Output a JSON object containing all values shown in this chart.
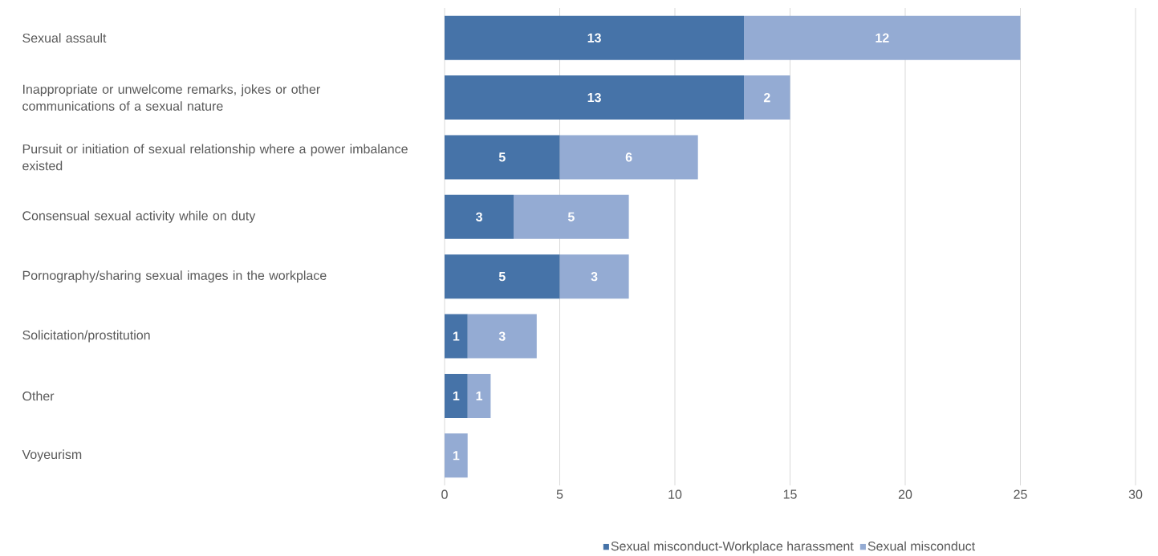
{
  "chart_data": {
    "type": "bar",
    "orientation": "horizontal",
    "stacked": true,
    "categories": [
      "Sexual assault",
      "Inappropriate or unwelcome remarks, jokes or other communications of a sexual nature",
      "Pursuit or initiation of sexual relationship where a power imbalance existed",
      "Consensual sexual activity while on duty",
      "Pornography/sharing sexual images in the workplace",
      "Solicitation/prostitution",
      "Other",
      "Voyeurism"
    ],
    "series": [
      {
        "name": "Sexual misconduct-Workplace harassment",
        "color": "#4673a8",
        "values": [
          13,
          13,
          5,
          3,
          5,
          1,
          1,
          null
        ]
      },
      {
        "name": "Sexual misconduct",
        "color": "#94abd3",
        "values": [
          12,
          2,
          6,
          5,
          3,
          3,
          1,
          1
        ]
      }
    ],
    "xlim": [
      0,
      30
    ],
    "xticks": [
      0,
      5,
      10,
      15,
      20,
      25,
      30
    ],
    "grid": "x",
    "legend": "bottom",
    "data_labels": true
  }
}
